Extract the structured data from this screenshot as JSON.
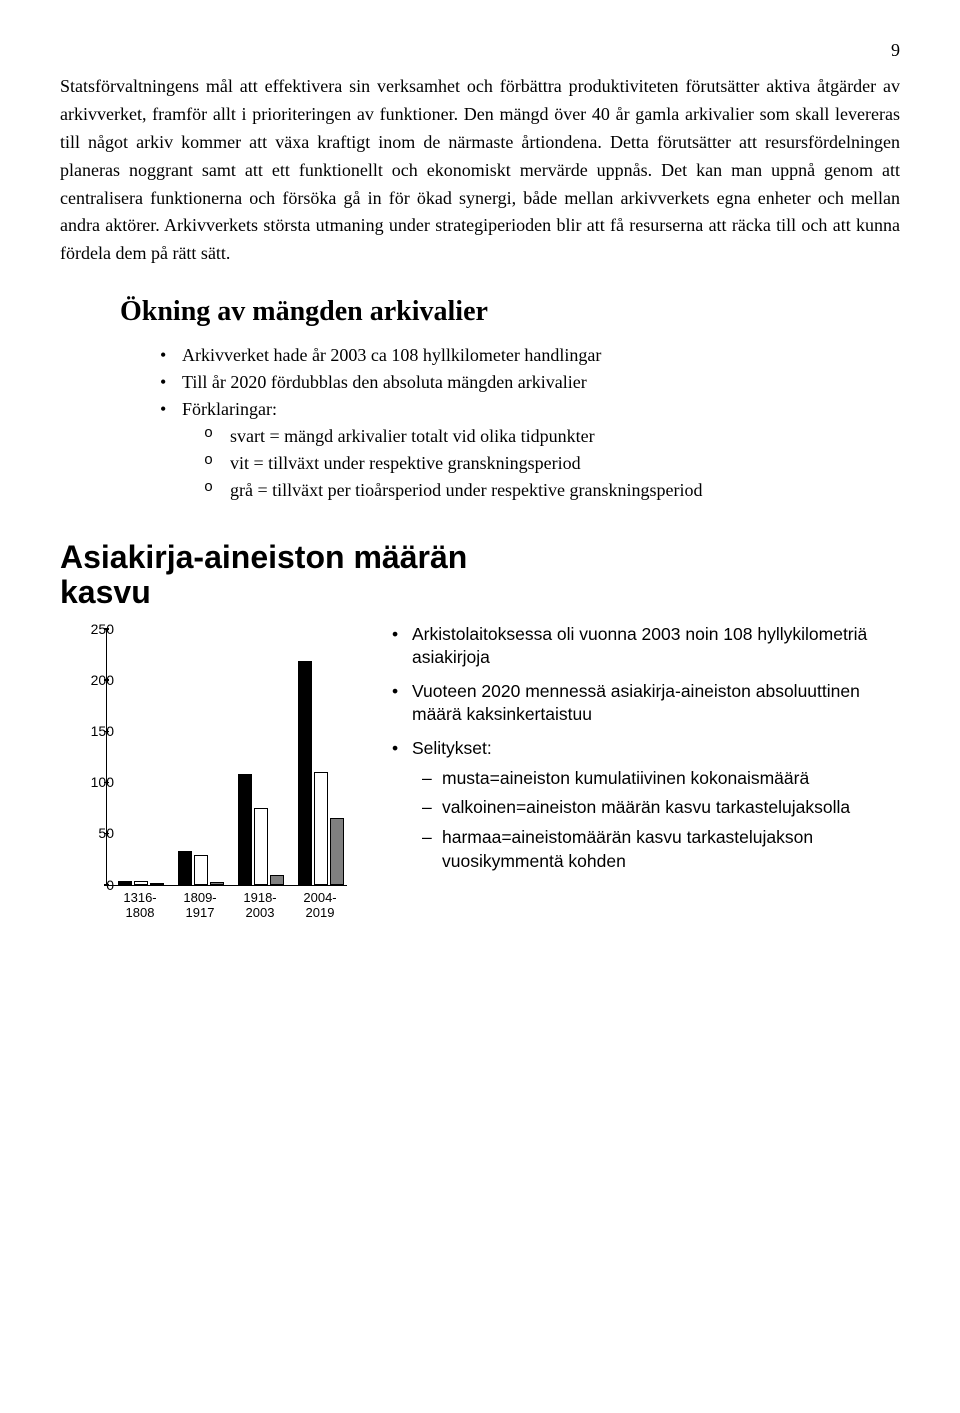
{
  "page_number": "9",
  "body_text": "Statsförvaltningens mål att effektivera sin verksamhet och förbättra produktiviteten förutsätter aktiva åtgärder av arkivverket, framför allt i prioriteringen av funktioner. Den mängd över 40 år gamla arkivalier som skall levereras till något arkiv kommer att växa kraftigt inom de närmaste årtiondena. Detta förutsätter att resursfördelningen planeras noggrant samt att ett funktionellt och ekonomiskt mervärde uppnås. Det kan man uppnå genom att centralisera funktionerna och försöka gå in för ökad synergi, både mellan arkivverkets egna enheter och mellan andra aktörer. Arkivverkets största utmaning under strategiperioden blir att få resurserna att räcka till och att kunna fördela dem på rätt sätt.",
  "section_heading": "Ökning av mängden arkivalier",
  "bullets": {
    "b1": "Arkivverket hade år 2003 ca 108 hyllkilometer handlingar",
    "b2": "Till år 2020 fördubblas den absoluta mängden arkivalier",
    "b3": "Förklaringar:",
    "s1": "svart = mängd arkivalier totalt vid olika tidpunkter",
    "s2": "vit = tillväxt under respektive granskningsperiod",
    "s3": "grå = tillväxt per tioårsperiod under respektive granskningsperiod"
  },
  "chart": {
    "title_l1": "Asiakirja-aineiston määrän",
    "title_l2": "kasvu",
    "y_max": 250,
    "y_ticks": [
      0,
      50,
      100,
      150,
      200,
      250
    ],
    "colors": {
      "black": "#000000",
      "white": "#ffffff",
      "gray": "#808080"
    },
    "groups": [
      {
        "label_l1": "1316-",
        "label_l2": "1808",
        "black": 4,
        "white": 4,
        "gray": 0.1
      },
      {
        "label_l1": "1809-",
        "label_l2": "1917",
        "black": 33,
        "white": 29,
        "gray": 2.5
      },
      {
        "label_l1": "1918-",
        "label_l2": "2003",
        "black": 108,
        "white": 75,
        "gray": 9
      },
      {
        "label_l1": "2004-",
        "label_l2": "2019",
        "black": 218,
        "white": 110,
        "gray": 65
      }
    ]
  },
  "side": {
    "s1": "Arkistolaitoksessa oli vuonna 2003 noin 108 hyllykilometriä asiakirjoja",
    "s2": "Vuoteen 2020 mennessä asiakirja-aineiston absoluuttinen määrä kaksinkertaistuu",
    "s3": "Selitykset:",
    "sub1": "musta=aineiston kumulatiivinen kokonaismäärä",
    "sub2": "valkoinen=aineiston määrän kasvu tarkastelujaksolla",
    "sub3": "harmaa=aineistomäärän kasvu tarkastelujakson vuosikymmentä kohden"
  }
}
